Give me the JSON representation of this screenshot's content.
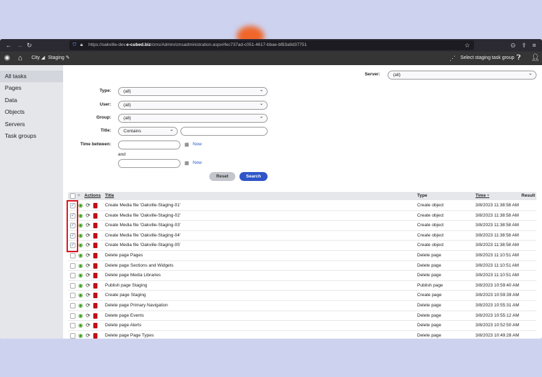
{
  "browser": {
    "url_prefix": "https://oakville-dev.",
    "url_domain": "e-cubed.biz",
    "url_path": "/cms/Admin/cmsadministration.aspx#fec737ad-c051-4617-bbae-bf83a9d37751"
  },
  "app_header": {
    "site": "City",
    "mode": "Staging",
    "task_group": "Select staging task group"
  },
  "sidebar": {
    "items": [
      {
        "label": "All tasks"
      },
      {
        "label": "Pages"
      },
      {
        "label": "Data"
      },
      {
        "label": "Objects"
      },
      {
        "label": "Servers"
      },
      {
        "label": "Task groups"
      }
    ]
  },
  "filters": {
    "server_label": "Server:",
    "server_value": "(all)",
    "type_label": "Type:",
    "type_value": "(all)",
    "user_label": "User:",
    "user_value": "(all)",
    "group_label": "Group:",
    "group_value": "(all)",
    "title_label": "Title:",
    "title_op": "Contains",
    "title_value": "",
    "time_label": "Time between:",
    "and_label": "and",
    "now": "Now",
    "reset": "Reset",
    "search": "Search"
  },
  "table": {
    "headers": {
      "actions": "Actions",
      "title": "Title",
      "type": "Type",
      "time": "Time",
      "result": "Result"
    },
    "rows": [
      {
        "checked": true,
        "title": "Create Media file 'Oakville-Staging-01'",
        "type": "Create object",
        "time": "3/8/2023 11:38:58 AM"
      },
      {
        "checked": true,
        "title": "Create Media file 'Oakville-Staging-02'",
        "type": "Create object",
        "time": "3/8/2023 11:38:58 AM"
      },
      {
        "checked": true,
        "title": "Create Media file 'Oakville-Staging-03'",
        "type": "Create object",
        "time": "3/8/2023 11:38:58 AM"
      },
      {
        "checked": true,
        "title": "Create Media file 'Oakville-Staging-04'",
        "type": "Create object",
        "time": "3/8/2023 11:38:58 AM"
      },
      {
        "checked": true,
        "title": "Create Media file 'Oakville-Staging-05'",
        "type": "Create object",
        "time": "3/8/2023 11:38:58 AM"
      },
      {
        "checked": false,
        "title": "Delete page Pages",
        "type": "Delete page",
        "time": "3/8/2023 11:10:51 AM"
      },
      {
        "checked": false,
        "title": "Delete page Sections and Widgets",
        "type": "Delete page",
        "time": "3/8/2023 11:10:51 AM"
      },
      {
        "checked": false,
        "title": "Delete page Media Libraries",
        "type": "Delete page",
        "time": "3/8/2023 11:10:51 AM"
      },
      {
        "checked": false,
        "title": "Publish page Staging",
        "type": "Publish page",
        "time": "3/8/2023 10:59:40 AM"
      },
      {
        "checked": false,
        "title": "Create page Staging",
        "type": "Create page",
        "time": "3/8/2023 10:59:39 AM"
      },
      {
        "checked": false,
        "title": "Delete page Primary Navigation",
        "type": "Delete page",
        "time": "3/8/2023 10:55:31 AM"
      },
      {
        "checked": false,
        "title": "Delete page Events",
        "type": "Delete page",
        "time": "3/8/2023 10:55:12 AM"
      },
      {
        "checked": false,
        "title": "Delete page Alerts",
        "type": "Delete page",
        "time": "3/8/2023 10:52:50 AM"
      },
      {
        "checked": false,
        "title": "Delete page Page Types",
        "type": "Delete page",
        "time": "3/8/2023 10:49:28 AM"
      }
    ]
  },
  "colors": {
    "primary": "#2f55c8",
    "highlight": "#e0121e",
    "view": "#3b9a1c",
    "delete": "#c0101a"
  }
}
